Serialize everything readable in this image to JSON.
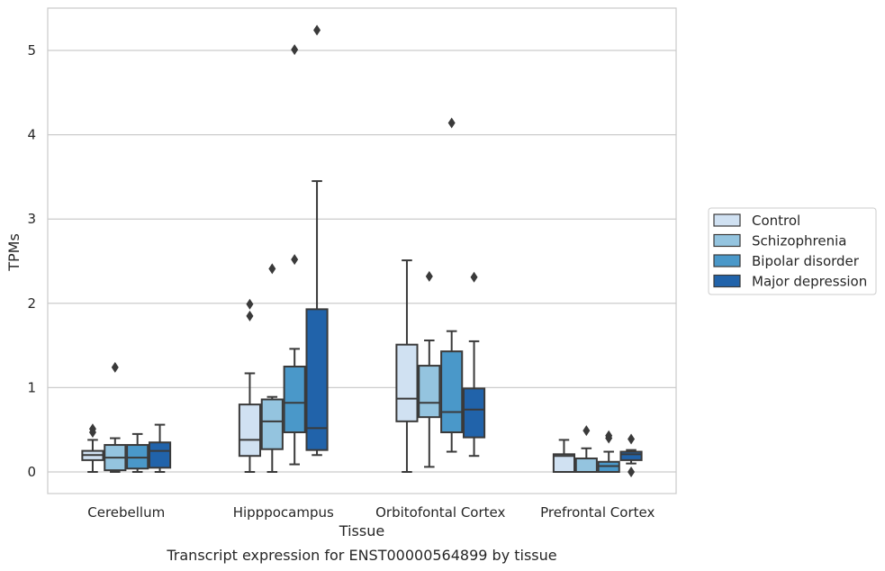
{
  "chart_data": {
    "type": "box",
    "title": "",
    "caption": "Transcript expression for ENST00000564899 by tissue",
    "xlabel": "Tissue",
    "ylabel": "TPMs",
    "ylim": [
      -0.25,
      5.5
    ],
    "yticks": [
      0,
      1,
      2,
      3,
      4,
      5
    ],
    "grid": "horizontal",
    "legend_position": "right",
    "categories": [
      "Cerebellum",
      "Hipppocampus",
      "Orbitofontal Cortex",
      "Prefrontal Cortex"
    ],
    "series": [
      {
        "name": "Control",
        "color": "#d0e1f2",
        "boxes": [
          {
            "whislo": 0.0,
            "q1": 0.14,
            "med": 0.2,
            "q3": 0.25,
            "whishi": 0.38,
            "fliers": [
              0.47,
              0.51
            ]
          },
          {
            "whislo": 0.0,
            "q1": 0.19,
            "med": 0.38,
            "q3": 0.8,
            "whishi": 1.17,
            "fliers": [
              1.85,
              1.99
            ]
          },
          {
            "whislo": 0.0,
            "q1": 0.6,
            "med": 0.87,
            "q3": 1.51,
            "whishi": 2.51,
            "fliers": []
          },
          {
            "whislo": 0.0,
            "q1": 0.0,
            "med": 0.19,
            "q3": 0.21,
            "whishi": 0.38,
            "fliers": []
          }
        ]
      },
      {
        "name": "Schizophrenia",
        "color": "#94c4df",
        "boxes": [
          {
            "whislo": 0.0,
            "q1": 0.02,
            "med": 0.17,
            "q3": 0.32,
            "whishi": 0.4,
            "fliers": [
              1.24
            ]
          },
          {
            "whislo": 0.0,
            "q1": 0.27,
            "med": 0.6,
            "q3": 0.86,
            "whishi": 0.89,
            "fliers": [
              2.41
            ]
          },
          {
            "whislo": 0.06,
            "q1": 0.65,
            "med": 0.82,
            "q3": 1.26,
            "whishi": 1.56,
            "fliers": [
              2.32
            ]
          },
          {
            "whislo": 0.0,
            "q1": 0.0,
            "med": 0.0,
            "q3": 0.16,
            "whishi": 0.28,
            "fliers": [
              0.49
            ]
          }
        ]
      },
      {
        "name": "Bipolar disorder",
        "color": "#4a98c9",
        "boxes": [
          {
            "whislo": 0.0,
            "q1": 0.04,
            "med": 0.17,
            "q3": 0.32,
            "whishi": 0.45,
            "fliers": []
          },
          {
            "whislo": 0.09,
            "q1": 0.47,
            "med": 0.82,
            "q3": 1.25,
            "whishi": 1.46,
            "fliers": [
              5.01,
              2.52
            ]
          },
          {
            "whislo": 0.24,
            "q1": 0.47,
            "med": 0.71,
            "q3": 1.43,
            "whishi": 1.67,
            "fliers": [
              4.14
            ]
          },
          {
            "whislo": 0.0,
            "q1": 0.0,
            "med": 0.07,
            "q3": 0.12,
            "whishi": 0.24,
            "fliers": [
              0.4,
              0.43
            ]
          }
        ]
      },
      {
        "name": "Major depression",
        "color": "#2163aa",
        "boxes": [
          {
            "whislo": 0.0,
            "q1": 0.05,
            "med": 0.25,
            "q3": 0.35,
            "whishi": 0.56,
            "fliers": []
          },
          {
            "whislo": 0.2,
            "q1": 0.26,
            "med": 0.52,
            "q3": 1.93,
            "whishi": 3.45,
            "fliers": [
              5.24
            ]
          },
          {
            "whislo": 0.19,
            "q1": 0.41,
            "med": 0.74,
            "q3": 0.99,
            "whishi": 1.55,
            "fliers": [
              2.31
            ]
          },
          {
            "whislo": 0.1,
            "q1": 0.14,
            "med": 0.21,
            "q3": 0.24,
            "whishi": 0.26,
            "fliers": [
              0.0,
              0.39
            ]
          }
        ]
      }
    ]
  }
}
